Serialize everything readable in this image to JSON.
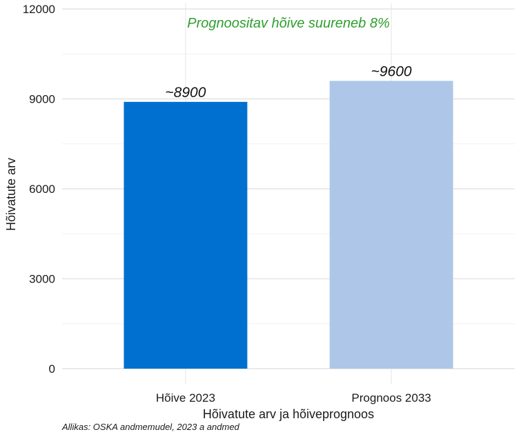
{
  "chart_data": {
    "type": "bar",
    "categories": [
      "Hõive 2023",
      "Prognoos 2033"
    ],
    "values": [
      8900,
      9600
    ],
    "data_labels": [
      "~8900",
      "~9600"
    ],
    "bar_colors": [
      "#0070D0",
      "#AEC7E8"
    ],
    "annotation": "Prognoositav hõive suureneb 8%",
    "annotation_color": "#2E9E2E",
    "xlabel": "Hõivatute arv ja hõiveprognoos",
    "ylabel": "Hõivatute arv",
    "ylim": [
      0,
      12000
    ],
    "yticks": [
      0,
      3000,
      6000,
      9000,
      12000
    ],
    "yticks_labels": [
      "0",
      "3000",
      "6000",
      "9000",
      "12000"
    ],
    "grid": true,
    "caption": "Allikas: OSKA andmemudel, 2023 a andmed"
  }
}
